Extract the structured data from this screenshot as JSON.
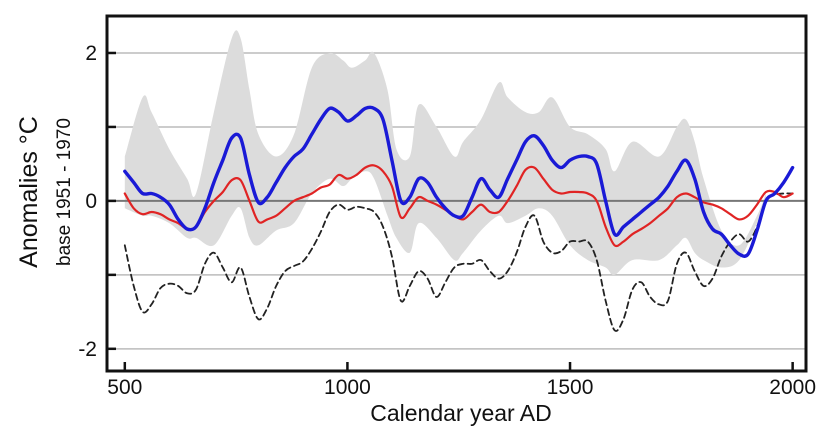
{
  "chart_data": {
    "type": "line",
    "title": "",
    "xlabel": "Calendar year AD",
    "ylabel": "Anomalies °C",
    "ylabel_sub": "base 1951 - 1970",
    "xlim": [
      460,
      2030
    ],
    "ylim": [
      -2.3,
      2.5
    ],
    "xticks": [
      500,
      1000,
      1500,
      2000
    ],
    "yticks": [
      -2,
      0,
      2
    ],
    "ytick_labels": [
      "-2",
      "0",
      "2"
    ],
    "yticks_minor": [
      -1,
      1
    ],
    "grid": true,
    "grid_y": [
      -2,
      -1,
      1,
      2
    ],
    "legend": "none",
    "colors": {
      "band": "#dcdcdc",
      "blue": "#1a1ad6",
      "red": "#e02424",
      "dashed": "#222222",
      "zero_line": "#777777",
      "grid": "#bbbbbb"
    },
    "band": {
      "x": [
        500,
        540,
        560,
        600,
        640,
        660,
        700,
        740,
        760,
        780,
        800,
        840,
        880,
        920,
        960,
        990,
        1010,
        1040,
        1060,
        1090,
        1110,
        1140,
        1160,
        1200,
        1240,
        1260,
        1300,
        1340,
        1360,
        1400,
        1430,
        1460,
        1500,
        1540,
        1580,
        1600,
        1640,
        1700,
        1740,
        1760,
        1780,
        1800,
        1840,
        1880,
        1920,
        1940
      ],
      "upper": [
        0.6,
        1.4,
        1.2,
        0.7,
        0.3,
        0.1,
        1.2,
        2.2,
        2.2,
        1.5,
        0.9,
        0.6,
        0.9,
        1.8,
        2.0,
        1.9,
        1.8,
        1.9,
        2.0,
        1.5,
        0.7,
        0.6,
        1.3,
        1.0,
        0.6,
        0.8,
        1.1,
        1.6,
        1.4,
        1.2,
        1.2,
        1.4,
        1.0,
        0.9,
        0.7,
        0.4,
        0.8,
        0.6,
        1.0,
        1.1,
        0.8,
        0.3,
        -0.4,
        -0.6,
        -0.2,
        0.1
      ],
      "lower": [
        -0.1,
        -0.2,
        -0.2,
        -0.3,
        -0.5,
        -0.5,
        -0.6,
        -0.2,
        -0.1,
        -0.5,
        -0.6,
        -0.4,
        -0.3,
        0.1,
        0.3,
        0.2,
        0.3,
        0.4,
        0.3,
        -0.2,
        -0.5,
        -0.7,
        -0.3,
        -0.5,
        -0.8,
        -0.7,
        -0.4,
        -0.2,
        -0.3,
        -0.2,
        -0.1,
        -0.2,
        -0.6,
        -0.8,
        -0.9,
        -1.0,
        -0.8,
        -0.8,
        -0.6,
        -0.5,
        -0.7,
        -0.8,
        -0.9,
        -0.8,
        -0.3,
        0.0
      ]
    },
    "series": [
      {
        "style": "thick-blue",
        "x": [
          500,
          520,
          540,
          560,
          580,
          600,
          620,
          640,
          660,
          680,
          700,
          720,
          740,
          760,
          780,
          800,
          820,
          840,
          860,
          880,
          900,
          920,
          940,
          960,
          980,
          1000,
          1020,
          1040,
          1060,
          1080,
          1100,
          1120,
          1140,
          1160,
          1180,
          1200,
          1220,
          1240,
          1260,
          1280,
          1300,
          1320,
          1340,
          1360,
          1380,
          1400,
          1420,
          1440,
          1460,
          1480,
          1500,
          1520,
          1540,
          1560,
          1580,
          1600,
          1620,
          1640,
          1660,
          1680,
          1700,
          1720,
          1740,
          1760,
          1780,
          1800,
          1820,
          1840,
          1860,
          1880,
          1900,
          1920,
          1940,
          1960,
          1980,
          2000
        ],
        "y": [
          0.4,
          0.25,
          0.1,
          0.1,
          0.05,
          -0.05,
          -0.25,
          -0.38,
          -0.35,
          -0.1,
          0.25,
          0.55,
          0.85,
          0.85,
          0.35,
          -0.02,
          0.05,
          0.25,
          0.45,
          0.6,
          0.7,
          0.9,
          1.1,
          1.25,
          1.2,
          1.08,
          1.15,
          1.25,
          1.25,
          1.1,
          0.55,
          0.0,
          0.05,
          0.3,
          0.25,
          0.05,
          -0.1,
          -0.2,
          -0.2,
          0.05,
          0.3,
          0.15,
          0.05,
          0.3,
          0.55,
          0.8,
          0.88,
          0.75,
          0.55,
          0.45,
          0.55,
          0.6,
          0.6,
          0.5,
          0.0,
          -0.45,
          -0.35,
          -0.25,
          -0.15,
          -0.05,
          0.05,
          0.2,
          0.4,
          0.55,
          0.3,
          -0.15,
          -0.38,
          -0.45,
          -0.6,
          -0.72,
          -0.72,
          -0.4,
          0.0,
          0.1,
          0.25,
          0.45
        ]
      },
      {
        "style": "thin-red",
        "x": [
          500,
          520,
          540,
          560,
          580,
          600,
          620,
          640,
          660,
          680,
          700,
          720,
          740,
          760,
          780,
          800,
          820,
          840,
          860,
          880,
          900,
          920,
          940,
          960,
          980,
          1000,
          1020,
          1040,
          1060,
          1080,
          1100,
          1120,
          1140,
          1160,
          1180,
          1200,
          1220,
          1240,
          1260,
          1280,
          1300,
          1320,
          1340,
          1360,
          1380,
          1400,
          1420,
          1440,
          1460,
          1480,
          1500,
          1520,
          1540,
          1560,
          1580,
          1600,
          1620,
          1640,
          1660,
          1680,
          1700,
          1720,
          1740,
          1760,
          1780,
          1800,
          1820,
          1840,
          1860,
          1880,
          1900,
          1920,
          1940,
          1960,
          1980,
          2000
        ],
        "y": [
          0.1,
          -0.1,
          -0.18,
          -0.15,
          -0.18,
          -0.25,
          -0.3,
          -0.38,
          -0.35,
          -0.15,
          0.0,
          0.12,
          0.28,
          0.28,
          0.0,
          -0.28,
          -0.25,
          -0.2,
          -0.1,
          0.0,
          0.05,
          0.1,
          0.18,
          0.22,
          0.35,
          0.3,
          0.35,
          0.45,
          0.48,
          0.4,
          0.2,
          -0.22,
          -0.1,
          0.05,
          0.0,
          -0.05,
          -0.12,
          -0.2,
          -0.25,
          -0.15,
          -0.05,
          -0.15,
          -0.15,
          0.0,
          0.2,
          0.42,
          0.45,
          0.3,
          0.15,
          0.1,
          0.12,
          0.12,
          0.1,
          0.0,
          -0.35,
          -0.6,
          -0.55,
          -0.45,
          -0.38,
          -0.3,
          -0.2,
          -0.1,
          0.05,
          0.1,
          0.05,
          -0.02,
          -0.05,
          -0.1,
          -0.18,
          -0.25,
          -0.2,
          -0.05,
          0.12,
          0.12,
          0.05,
          0.1
        ]
      },
      {
        "style": "dashed-black",
        "x": [
          500,
          520,
          540,
          560,
          580,
          600,
          620,
          640,
          660,
          680,
          700,
          720,
          740,
          760,
          780,
          800,
          820,
          840,
          860,
          880,
          900,
          920,
          940,
          960,
          980,
          1000,
          1020,
          1040,
          1060,
          1080,
          1100,
          1120,
          1140,
          1160,
          1180,
          1200,
          1220,
          1240,
          1260,
          1280,
          1300,
          1320,
          1340,
          1360,
          1380,
          1400,
          1420,
          1440,
          1460,
          1480,
          1500,
          1520,
          1540,
          1560,
          1580,
          1600,
          1620,
          1640,
          1660,
          1680,
          1700,
          1720,
          1740,
          1760,
          1780,
          1800,
          1820,
          1840,
          1860,
          1880,
          1900,
          1920,
          1940,
          1960,
          1980,
          2000
        ],
        "y": [
          -0.6,
          -1.15,
          -1.5,
          -1.4,
          -1.18,
          -1.12,
          -1.15,
          -1.25,
          -1.2,
          -0.85,
          -0.7,
          -0.9,
          -1.1,
          -0.9,
          -1.3,
          -1.6,
          -1.45,
          -1.15,
          -0.95,
          -0.88,
          -0.82,
          -0.65,
          -0.42,
          -0.15,
          -0.05,
          -0.12,
          -0.08,
          -0.1,
          -0.15,
          -0.35,
          -0.75,
          -1.35,
          -1.15,
          -0.95,
          -1.05,
          -1.3,
          -1.1,
          -0.9,
          -0.85,
          -0.85,
          -0.8,
          -0.95,
          -1.05,
          -0.95,
          -0.7,
          -0.35,
          -0.2,
          -0.55,
          -0.7,
          -0.68,
          -0.55,
          -0.55,
          -0.55,
          -0.8,
          -1.35,
          -1.75,
          -1.6,
          -1.2,
          -1.1,
          -1.3,
          -1.4,
          -1.35,
          -0.85,
          -0.7,
          -0.95,
          -1.15,
          -1.05,
          -0.75,
          -0.55,
          -0.45,
          -0.55,
          -0.35,
          0.0,
          0.08,
          0.1,
          0.1
        ]
      }
    ]
  }
}
